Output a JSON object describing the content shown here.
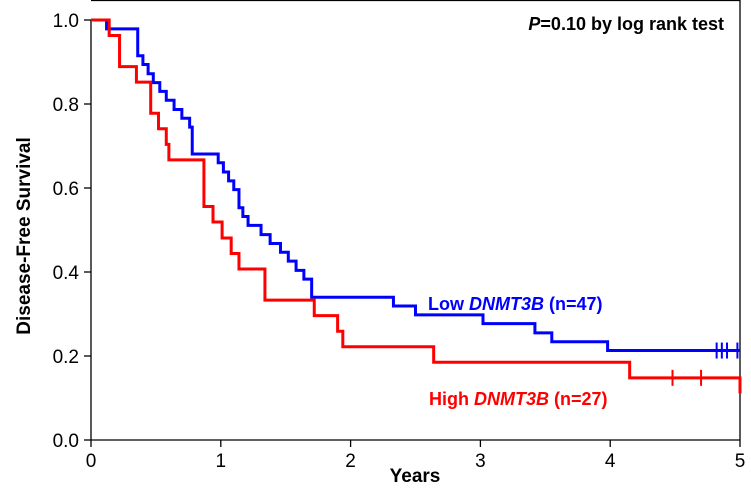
{
  "chart_data": {
    "type": "line",
    "step": true,
    "xlabel": "Years",
    "ylabel": "Disease-Free Survival",
    "xlim": [
      0,
      5
    ],
    "ylim": [
      0,
      1.0
    ],
    "x_ticks": [
      "0",
      "1",
      "2",
      "3",
      "4",
      "5"
    ],
    "y_ticks": [
      "0.0",
      "0.2",
      "0.4",
      "0.6",
      "0.8",
      "1.0"
    ],
    "grid": false,
    "annotations": {
      "p_value": {
        "italic": "P",
        "rest": "=0.10 by log rank test"
      }
    },
    "series": [
      {
        "label_prefix": "Low ",
        "label_gene": "DNMT3B",
        "label_suffix": " (n=47)",
        "color": "#0000ff",
        "x": [
          0,
          0.12,
          0.36,
          0.4,
          0.44,
          0.48,
          0.53,
          0.58,
          0.64,
          0.7,
          0.76,
          0.78,
          0.98,
          1.02,
          1.06,
          1.1,
          1.14,
          1.17,
          1.21,
          1.31,
          1.38,
          1.46,
          1.52,
          1.58,
          1.64,
          1.7,
          2.33,
          2.5,
          3.02,
          3.42,
          3.55,
          3.98,
          5.0
        ],
        "y": [
          1.0,
          0.979,
          0.915,
          0.894,
          0.872,
          0.851,
          0.83,
          0.809,
          0.787,
          0.766,
          0.745,
          0.681,
          0.66,
          0.638,
          0.617,
          0.596,
          0.553,
          0.532,
          0.511,
          0.489,
          0.468,
          0.447,
          0.426,
          0.404,
          0.383,
          0.34,
          0.319,
          0.298,
          0.277,
          0.255,
          0.234,
          0.213,
          0.213
        ],
        "censored_x": [
          4.82,
          4.86,
          4.9,
          4.98
        ]
      },
      {
        "label_prefix": "High ",
        "label_gene": "DNMT3B",
        "label_suffix": " (n=27)",
        "color": "#ff0000",
        "x": [
          0,
          0.14,
          0.22,
          0.35,
          0.46,
          0.52,
          0.58,
          0.6,
          0.87,
          0.94,
          1.01,
          1.08,
          1.14,
          1.34,
          1.72,
          1.9,
          1.94,
          2.64,
          4.15,
          5.0
        ],
        "y": [
          1.0,
          0.963,
          0.889,
          0.852,
          0.778,
          0.741,
          0.704,
          0.667,
          0.556,
          0.519,
          0.481,
          0.444,
          0.407,
          0.333,
          0.296,
          0.259,
          0.222,
          0.185,
          0.148,
          0.111
        ],
        "censored_x": [
          4.48,
          4.7
        ]
      }
    ]
  }
}
